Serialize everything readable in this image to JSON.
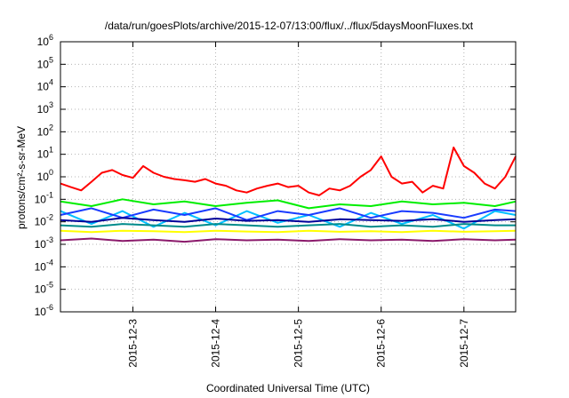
{
  "chart_data": {
    "type": "line",
    "title": "/data/run/goesPlots/archive/2015-12-07/13:00/flux/../flux/5daysMoonFluxes.txt",
    "xlabel": "Coordinated Universal Time (UTC)",
    "ylabel": "protons/cm²-s-sr-MeV",
    "yscale": "log",
    "ylim": [
      1e-06,
      1000000.0
    ],
    "xlim": [
      "2015-12-02T03:00",
      "2015-12-07T15:00"
    ],
    "x_ticks": [
      "2015-12-3",
      "2015-12-4",
      "2015-12-5",
      "2015-12-6",
      "2015-12-7"
    ],
    "y_ticks": [
      {
        "base": "10",
        "exp": "-6"
      },
      {
        "base": "10",
        "exp": "-5"
      },
      {
        "base": "10",
        "exp": "-4"
      },
      {
        "base": "10",
        "exp": "-3"
      },
      {
        "base": "10",
        "exp": "-2"
      },
      {
        "base": "10",
        "exp": "-1"
      },
      {
        "base": "10",
        "exp": "0"
      },
      {
        "base": "10",
        "exp": "1"
      },
      {
        "base": "10",
        "exp": "2"
      },
      {
        "base": "10",
        "exp": "3"
      },
      {
        "base": "10",
        "exp": "4"
      },
      {
        "base": "10",
        "exp": "5"
      },
      {
        "base": "10",
        "exp": "6"
      }
    ],
    "grid": true,
    "legend": "none",
    "series": [
      {
        "color": "#ff0000",
        "x": [
          "2015-12-02T03:00",
          "2015-12-02T06:00",
          "2015-12-02T09:00",
          "2015-12-02T12:00",
          "2015-12-02T15:00",
          "2015-12-02T18:00",
          "2015-12-02T21:00",
          "2015-12-03T00:00",
          "2015-12-03T03:00",
          "2015-12-03T06:00",
          "2015-12-03T09:00",
          "2015-12-03T12:00",
          "2015-12-03T15:00",
          "2015-12-03T18:00",
          "2015-12-03T21:00",
          "2015-12-04T00:00",
          "2015-12-04T03:00",
          "2015-12-04T06:00",
          "2015-12-04T09:00",
          "2015-12-04T12:00",
          "2015-12-04T15:00",
          "2015-12-04T18:00",
          "2015-12-04T21:00",
          "2015-12-05T00:00",
          "2015-12-05T03:00",
          "2015-12-05T06:00",
          "2015-12-05T09:00",
          "2015-12-05T12:00",
          "2015-12-05T15:00",
          "2015-12-05T18:00",
          "2015-12-05T21:00",
          "2015-12-06T00:00",
          "2015-12-06T03:00",
          "2015-12-06T06:00",
          "2015-12-06T09:00",
          "2015-12-06T12:00",
          "2015-12-06T15:00",
          "2015-12-06T18:00",
          "2015-12-06T21:00",
          "2015-12-07T00:00",
          "2015-12-07T03:00",
          "2015-12-07T06:00",
          "2015-12-07T09:00",
          "2015-12-07T12:00",
          "2015-12-07T15:00"
        ],
        "y": [
          0.5,
          0.35,
          0.25,
          0.6,
          1.5,
          2,
          1.2,
          0.9,
          3,
          1.5,
          1,
          0.8,
          0.7,
          0.6,
          0.8,
          0.5,
          0.4,
          0.25,
          0.2,
          0.3,
          0.4,
          0.5,
          0.35,
          0.4,
          0.2,
          0.15,
          0.3,
          0.25,
          0.4,
          1,
          2,
          8,
          1,
          0.5,
          0.6,
          0.2,
          0.4,
          0.3,
          20,
          3,
          1.5,
          0.5,
          0.3,
          1,
          8
        ]
      },
      {
        "color": "#00ee00",
        "x": [
          "2015-12-02T03:00",
          "2015-12-02T12:00",
          "2015-12-02T21:00",
          "2015-12-03T06:00",
          "2015-12-03T15:00",
          "2015-12-04T00:00",
          "2015-12-04T09:00",
          "2015-12-04T18:00",
          "2015-12-05T03:00",
          "2015-12-05T12:00",
          "2015-12-05T21:00",
          "2015-12-06T06:00",
          "2015-12-06T15:00",
          "2015-12-07T00:00",
          "2015-12-07T09:00",
          "2015-12-07T15:00"
        ],
        "y": [
          0.08,
          0.05,
          0.1,
          0.06,
          0.08,
          0.05,
          0.07,
          0.09,
          0.04,
          0.06,
          0.05,
          0.08,
          0.06,
          0.07,
          0.05,
          0.08
        ]
      },
      {
        "color": "#00bfff",
        "x": [
          "2015-12-02T03:00",
          "2015-12-02T12:00",
          "2015-12-02T21:00",
          "2015-12-03T06:00",
          "2015-12-03T15:00",
          "2015-12-04T00:00",
          "2015-12-04T09:00",
          "2015-12-04T18:00",
          "2015-12-05T03:00",
          "2015-12-05T12:00",
          "2015-12-05T21:00",
          "2015-12-06T06:00",
          "2015-12-06T15:00",
          "2015-12-07T00:00",
          "2015-12-07T09:00",
          "2015-12-07T15:00"
        ],
        "y": [
          0.03,
          0.008,
          0.03,
          0.006,
          0.025,
          0.007,
          0.03,
          0.009,
          0.02,
          0.006,
          0.025,
          0.008,
          0.02,
          0.005,
          0.03,
          0.02
        ]
      },
      {
        "color": "#1a3cff",
        "x": [
          "2015-12-02T03:00",
          "2015-12-02T12:00",
          "2015-12-02T21:00",
          "2015-12-03T06:00",
          "2015-12-03T15:00",
          "2015-12-04T00:00",
          "2015-12-04T09:00",
          "2015-12-04T18:00",
          "2015-12-05T03:00",
          "2015-12-05T12:00",
          "2015-12-05T21:00",
          "2015-12-06T06:00",
          "2015-12-06T15:00",
          "2015-12-07T00:00",
          "2015-12-07T09:00",
          "2015-12-07T15:00"
        ],
        "y": [
          0.02,
          0.04,
          0.015,
          0.035,
          0.02,
          0.04,
          0.012,
          0.03,
          0.02,
          0.04,
          0.015,
          0.03,
          0.025,
          0.015,
          0.035,
          0.03
        ]
      },
      {
        "color": "#000099",
        "x": [
          "2015-12-02T03:00",
          "2015-12-02T12:00",
          "2015-12-02T21:00",
          "2015-12-03T06:00",
          "2015-12-03T15:00",
          "2015-12-04T00:00",
          "2015-12-04T09:00",
          "2015-12-04T18:00",
          "2015-12-05T03:00",
          "2015-12-05T12:00",
          "2015-12-05T21:00",
          "2015-12-06T06:00",
          "2015-12-06T15:00",
          "2015-12-07T00:00",
          "2015-12-07T09:00",
          "2015-12-07T15:00"
        ],
        "y": [
          0.012,
          0.01,
          0.015,
          0.012,
          0.01,
          0.014,
          0.011,
          0.012,
          0.01,
          0.013,
          0.012,
          0.011,
          0.013,
          0.01,
          0.012,
          0.013
        ]
      },
      {
        "color": "#008b8b",
        "x": [
          "2015-12-02T03:00",
          "2015-12-02T12:00",
          "2015-12-02T21:00",
          "2015-12-03T06:00",
          "2015-12-03T15:00",
          "2015-12-04T00:00",
          "2015-12-04T09:00",
          "2015-12-04T18:00",
          "2015-12-05T03:00",
          "2015-12-05T12:00",
          "2015-12-05T21:00",
          "2015-12-06T06:00",
          "2015-12-06T15:00",
          "2015-12-07T00:00",
          "2015-12-07T09:00",
          "2015-12-07T15:00"
        ],
        "y": [
          0.007,
          0.006,
          0.008,
          0.007,
          0.006,
          0.008,
          0.007,
          0.006,
          0.007,
          0.008,
          0.006,
          0.007,
          0.006,
          0.008,
          0.007,
          0.007
        ]
      },
      {
        "color": "#ffff00",
        "x": [
          "2015-12-02T03:00",
          "2015-12-02T12:00",
          "2015-12-02T21:00",
          "2015-12-03T06:00",
          "2015-12-03T15:00",
          "2015-12-04T00:00",
          "2015-12-04T09:00",
          "2015-12-04T18:00",
          "2015-12-05T03:00",
          "2015-12-05T12:00",
          "2015-12-05T21:00",
          "2015-12-06T06:00",
          "2015-12-06T15:00",
          "2015-12-07T00:00",
          "2015-12-07T09:00",
          "2015-12-07T15:00"
        ],
        "y": [
          0.004,
          0.0035,
          0.004,
          0.0038,
          0.0035,
          0.004,
          0.0037,
          0.0035,
          0.004,
          0.0036,
          0.0038,
          0.0035,
          0.004,
          0.0036,
          0.0038,
          0.004
        ]
      },
      {
        "color": "#8b1a6b",
        "x": [
          "2015-12-02T03:00",
          "2015-12-02T12:00",
          "2015-12-02T21:00",
          "2015-12-03T06:00",
          "2015-12-03T15:00",
          "2015-12-04T00:00",
          "2015-12-04T09:00",
          "2015-12-04T18:00",
          "2015-12-05T03:00",
          "2015-12-05T12:00",
          "2015-12-05T21:00",
          "2015-12-06T06:00",
          "2015-12-06T15:00",
          "2015-12-07T00:00",
          "2015-12-07T09:00",
          "2015-12-07T15:00"
        ],
        "y": [
          0.0015,
          0.0018,
          0.0014,
          0.0016,
          0.0013,
          0.0017,
          0.0015,
          0.0016,
          0.0014,
          0.0017,
          0.0015,
          0.0016,
          0.0014,
          0.0017,
          0.0015,
          0.0016
        ]
      }
    ]
  }
}
